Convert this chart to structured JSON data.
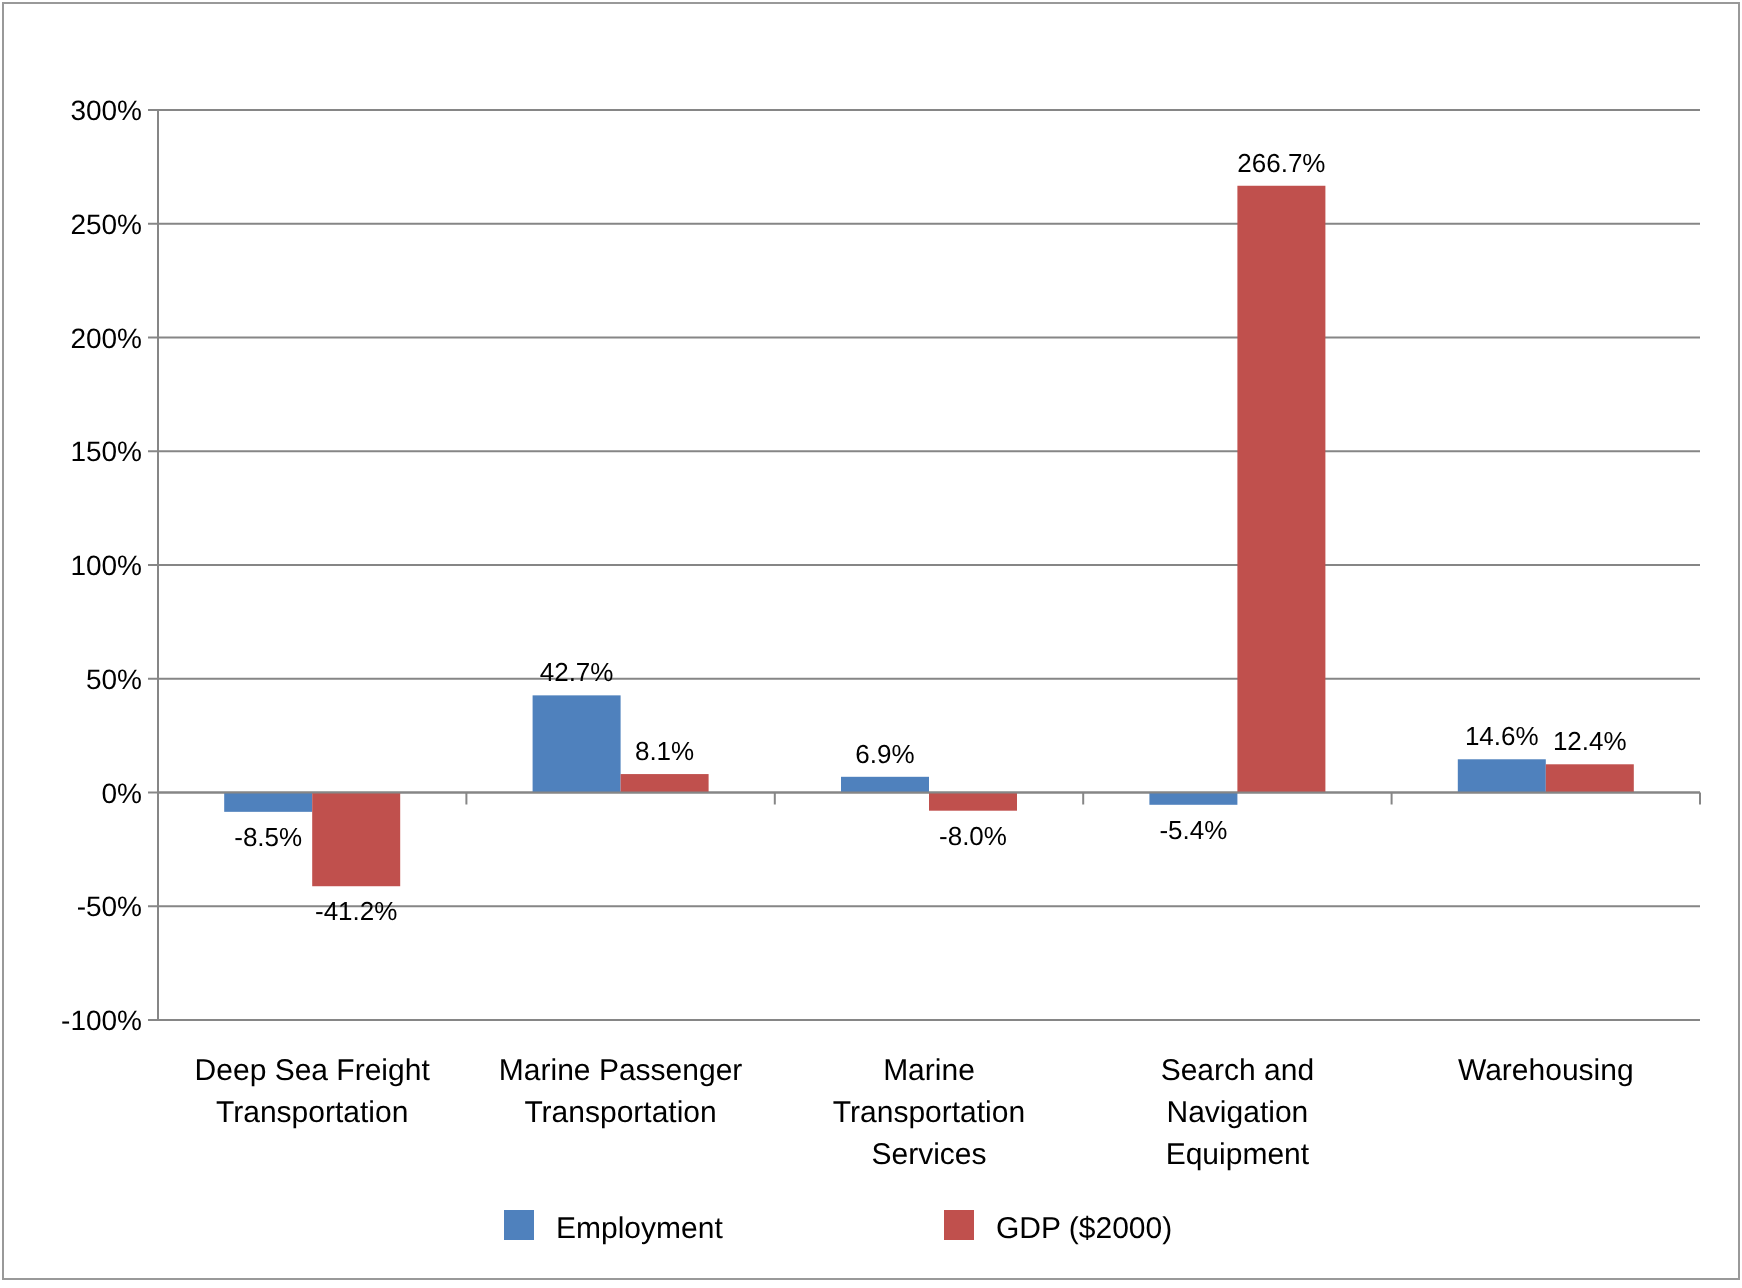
{
  "chart_data": {
    "type": "bar",
    "categories": [
      "Deep Sea Freight Transportation",
      "Marine Passenger Transportation",
      "Marine Transportation Services",
      "Search and Navigation Equipment",
      "Warehousing"
    ],
    "series": [
      {
        "name": "Employment",
        "color": "#4f81bd",
        "values": [
          -8.5,
          42.7,
          6.9,
          -5.4,
          14.6
        ],
        "value_labels": [
          "-8.5%",
          "42.7%",
          "6.9%",
          "-5.4%",
          "14.6%"
        ]
      },
      {
        "name": "GDP ($2000)",
        "color": "#c0504d",
        "values": [
          -41.2,
          8.1,
          -8.0,
          266.7,
          12.4
        ],
        "value_labels": [
          "-41.2%",
          "8.1%",
          "-8.0%",
          "266.7%",
          "12.4%"
        ]
      }
    ],
    "ylim": [
      -100,
      300
    ],
    "yticks": [
      {
        "value": -100,
        "label": "-100%"
      },
      {
        "value": -50,
        "label": "-50%"
      },
      {
        "value": 0,
        "label": "0%"
      },
      {
        "value": 50,
        "label": "50%"
      },
      {
        "value": 100,
        "label": "100%"
      },
      {
        "value": 150,
        "label": "150%"
      },
      {
        "value": 200,
        "label": "200%"
      },
      {
        "value": 250,
        "label": "250%"
      },
      {
        "value": 300,
        "label": "300%"
      }
    ],
    "grid": "y",
    "legend": "bottom"
  }
}
